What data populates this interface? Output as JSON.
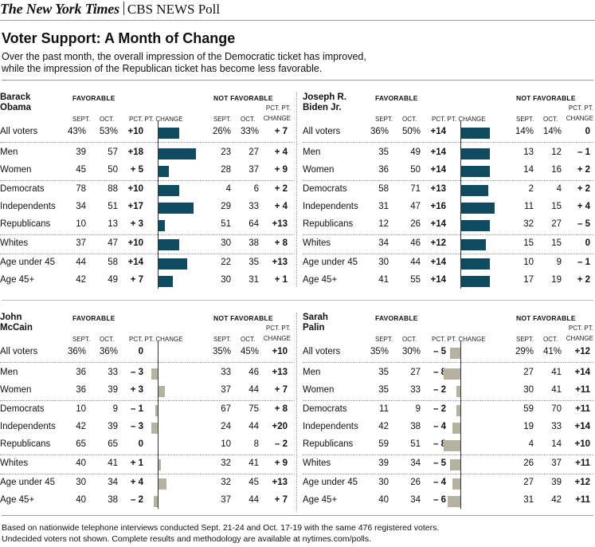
{
  "masthead": {
    "paper": "The New York Times",
    "poll": "CBS NEWS Poll"
  },
  "title": "Voter Support: A Month of Change",
  "subtitle_line1": "Over the past month, the overall impression of the Democratic ticket has improved,",
  "subtitle_line2": "while the impression of the Republican ticket has become less favorable.",
  "footnote_line1": "Based on nationwide telephone interviews conducted Sept. 21-24 and Oct. 17-19 with the same 476 registered voters.",
  "footnote_line2": "Undecided voters not shown. Complete results and methodology are available at nytimes.com/polls.",
  "labels": {
    "favorable": "FAVORABLE",
    "not_favorable": "NOT FAVORABLE",
    "sept": "SEPT.",
    "oct": "OCT.",
    "pct_change": "PCT. PT. CHANGE",
    "pct_pt": "PCT. PT.",
    "change": "CHANGE"
  },
  "colors": {
    "dem": "#0f4a5e",
    "rep": "#b5b2a2",
    "axis": "#333333"
  },
  "chart_data": [
    {
      "type": "bar",
      "candidate_line1": "Barack",
      "candidate_line2": "Obama",
      "party": "dem",
      "categories": [
        "All voters",
        "Men",
        "Women",
        "Democrats",
        "Independents",
        "Republicans",
        "Whites",
        "Age under 45",
        "Age 45+"
      ],
      "fav_sept": [
        "43%",
        "39",
        "45",
        "78",
        "34",
        "10",
        "37",
        "44",
        "42"
      ],
      "fav_oct": [
        "53%",
        "57",
        "50",
        "88",
        "51",
        "13",
        "47",
        "58",
        "49"
      ],
      "fav_change_label": [
        "+10",
        "+18",
        "+ 5",
        "+10",
        "+17",
        "+ 3",
        "+10",
        "+14",
        "+ 7"
      ],
      "fav_change": [
        10,
        18,
        5,
        10,
        17,
        3,
        10,
        14,
        7
      ],
      "notfav_sept": [
        "26%",
        "23",
        "28",
        "4",
        "29",
        "51",
        "30",
        "22",
        "30"
      ],
      "notfav_oct": [
        "33%",
        "27",
        "37",
        "6",
        "33",
        "64",
        "38",
        "35",
        "31"
      ],
      "notfav_change_label": [
        "+ 7",
        "+ 4",
        "+ 9",
        "+ 2",
        "+ 4",
        "+13",
        "+ 8",
        "+13",
        "+ 1"
      ]
    },
    {
      "type": "bar",
      "candidate_line1": "Joseph R.",
      "candidate_line2": "Biden Jr.",
      "party": "dem",
      "categories": [
        "All voters",
        "Men",
        "Women",
        "Democrats",
        "Independents",
        "Republicans",
        "Whites",
        "Age under 45",
        "Age 45+"
      ],
      "fav_sept": [
        "36%",
        "35",
        "36",
        "58",
        "31",
        "12",
        "34",
        "30",
        "41"
      ],
      "fav_oct": [
        "50%",
        "49",
        "50",
        "71",
        "47",
        "26",
        "46",
        "44",
        "55"
      ],
      "fav_change_label": [
        "+14",
        "+14",
        "+14",
        "+13",
        "+16",
        "+14",
        "+12",
        "+14",
        "+14"
      ],
      "fav_change": [
        14,
        14,
        14,
        13,
        16,
        14,
        12,
        14,
        14
      ],
      "notfav_sept": [
        "14%",
        "13",
        "14",
        "2",
        "11",
        "32",
        "15",
        "10",
        "17"
      ],
      "notfav_oct": [
        "14%",
        "12",
        "16",
        "4",
        "15",
        "27",
        "15",
        "9",
        "19"
      ],
      "notfav_change_label": [
        "0",
        "– 1",
        "+ 2",
        "+ 2",
        "+ 4",
        "– 5",
        "0",
        "– 1",
        "+ 2"
      ]
    },
    {
      "type": "bar",
      "candidate_line1": "John",
      "candidate_line2": "McCain",
      "party": "rep",
      "categories": [
        "All voters",
        "Men",
        "Women",
        "Democrats",
        "Independents",
        "Republicans",
        "Whites",
        "Age under 45",
        "Age 45+"
      ],
      "fav_sept": [
        "36%",
        "36",
        "36",
        "10",
        "42",
        "65",
        "40",
        "30",
        "40"
      ],
      "fav_oct": [
        "36%",
        "33",
        "39",
        "9",
        "39",
        "65",
        "41",
        "34",
        "38"
      ],
      "fav_change_label": [
        "0",
        "– 3",
        "+ 3",
        "– 1",
        "– 3",
        "0",
        "+ 1",
        "+ 4",
        "– 2"
      ],
      "fav_change": [
        0,
        -3,
        3,
        -1,
        -3,
        0,
        1,
        4,
        -2
      ],
      "notfav_sept": [
        "35%",
        "33",
        "37",
        "67",
        "24",
        "10",
        "32",
        "32",
        "37"
      ],
      "notfav_oct": [
        "45%",
        "46",
        "44",
        "75",
        "44",
        "8",
        "41",
        "45",
        "44"
      ],
      "notfav_change_label": [
        "+10",
        "+13",
        "+ 7",
        "+ 8",
        "+20",
        "– 2",
        "+ 9",
        "+13",
        "+ 7"
      ]
    },
    {
      "type": "bar",
      "candidate_line1": "Sarah",
      "candidate_line2": "Palin",
      "party": "rep",
      "categories": [
        "All voters",
        "Men",
        "Women",
        "Democrats",
        "Independents",
        "Republicans",
        "Whites",
        "Age under 45",
        "Age 45+"
      ],
      "fav_sept": [
        "35%",
        "35",
        "35",
        "11",
        "42",
        "59",
        "39",
        "30",
        "40"
      ],
      "fav_oct": [
        "30%",
        "27",
        "33",
        "9",
        "38",
        "51",
        "34",
        "26",
        "34"
      ],
      "fav_change_label": [
        "– 5",
        "– 8",
        "– 2",
        "– 2",
        "– 4",
        "– 8",
        "– 5",
        "– 4",
        "– 6"
      ],
      "fav_change": [
        -5,
        -8,
        -2,
        -2,
        -4,
        -8,
        -5,
        -4,
        -6
      ],
      "notfav_sept": [
        "29%",
        "27",
        "30",
        "59",
        "19",
        "4",
        "26",
        "27",
        "31"
      ],
      "notfav_oct": [
        "41%",
        "41",
        "41",
        "70",
        "33",
        "14",
        "37",
        "39",
        "42"
      ],
      "notfav_change_label": [
        "+12",
        "+14",
        "+11",
        "+11",
        "+14",
        "+10",
        "+11",
        "+12",
        "+11"
      ]
    }
  ]
}
